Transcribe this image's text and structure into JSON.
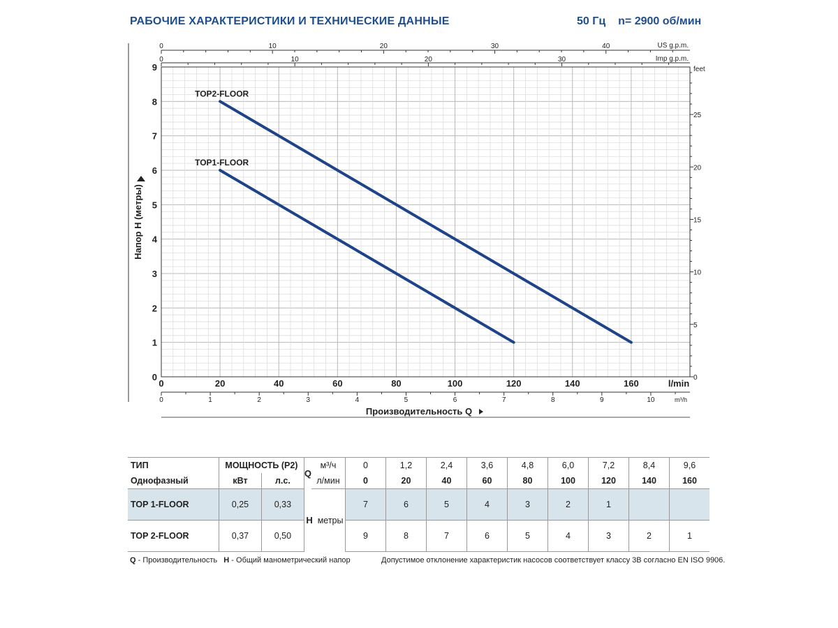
{
  "header": {
    "title": "РАБОЧИЕ ХАРАКТЕРИСТИКИ И ТЕХНИЧЕСКИЕ ДАННЫЕ",
    "freq": "50 Гц",
    "speed": "n= 2900 об/мин"
  },
  "chart_data": {
    "type": "line",
    "ylabel": "Напор H (метры)",
    "xlabel": "Производительность Q",
    "x_unit": "l/min",
    "x_ticks": [
      0,
      20,
      40,
      60,
      80,
      100,
      120,
      140,
      160
    ],
    "xlim": [
      0,
      180
    ],
    "y_ticks": [
      0,
      1,
      2,
      3,
      4,
      5,
      6,
      7,
      8,
      9
    ],
    "ylim": [
      0,
      9
    ],
    "grid": true,
    "secondary_axes": {
      "us_gpm": {
        "unit": "US g.p.m.",
        "ticks": [
          0,
          10,
          20,
          30,
          40
        ]
      },
      "imp_gpm": {
        "unit": "Imp g.p.m.",
        "ticks": [
          0,
          10,
          20,
          30
        ]
      },
      "feet": {
        "unit": "feet",
        "ticks": [
          0,
          5,
          10,
          15,
          20,
          25
        ]
      },
      "m3h": {
        "unit": "m³/h",
        "ticks": [
          0,
          1,
          2,
          3,
          4,
          5,
          6,
          7,
          8,
          9,
          10
        ]
      }
    },
    "series": [
      {
        "name": "TOP2-FLOOR",
        "x": [
          20,
          160
        ],
        "y": [
          8,
          1
        ],
        "color": "#1f4388"
      },
      {
        "name": "TOP1-FLOOR",
        "x": [
          20,
          120
        ],
        "y": [
          6,
          1
        ],
        "color": "#1f4388"
      }
    ]
  },
  "table": {
    "h_type": "ТИП",
    "h_phase": "Однофазный",
    "h_power": "МОЩНОСТЬ (P2)",
    "h_kw": "кВт",
    "h_hp": "л.с.",
    "h_q": "Q",
    "h_m3h": "м³/ч",
    "h_lmin": "л/мин",
    "q_m3h": [
      "0",
      "1,2",
      "2,4",
      "3,6",
      "4,8",
      "6,0",
      "7,2",
      "8,4",
      "9,6"
    ],
    "q_lmin": [
      "0",
      "20",
      "40",
      "60",
      "80",
      "100",
      "120",
      "140",
      "160"
    ],
    "h_h": "H",
    "h_meters": "метры",
    "rows": [
      {
        "name": "TOP 1-FLOOR",
        "kw": "0,25",
        "hp": "0,33",
        "h": [
          "7",
          "6",
          "5",
          "4",
          "3",
          "2",
          "1",
          "",
          ""
        ]
      },
      {
        "name": "TOP 2-FLOOR",
        "kw": "0,37",
        "hp": "0,50",
        "h": [
          "9",
          "8",
          "7",
          "6",
          "5",
          "4",
          "3",
          "2",
          "1"
        ]
      }
    ]
  },
  "footer": {
    "q_letter": "Q",
    "q_text": " - Производительность",
    "h_letter": "H",
    "h_text": " - Общий манометрический напор",
    "tolerance": "Допустимое отклонение характеристик насосов соответствует классу 3B согласно EN ISO 9906."
  }
}
